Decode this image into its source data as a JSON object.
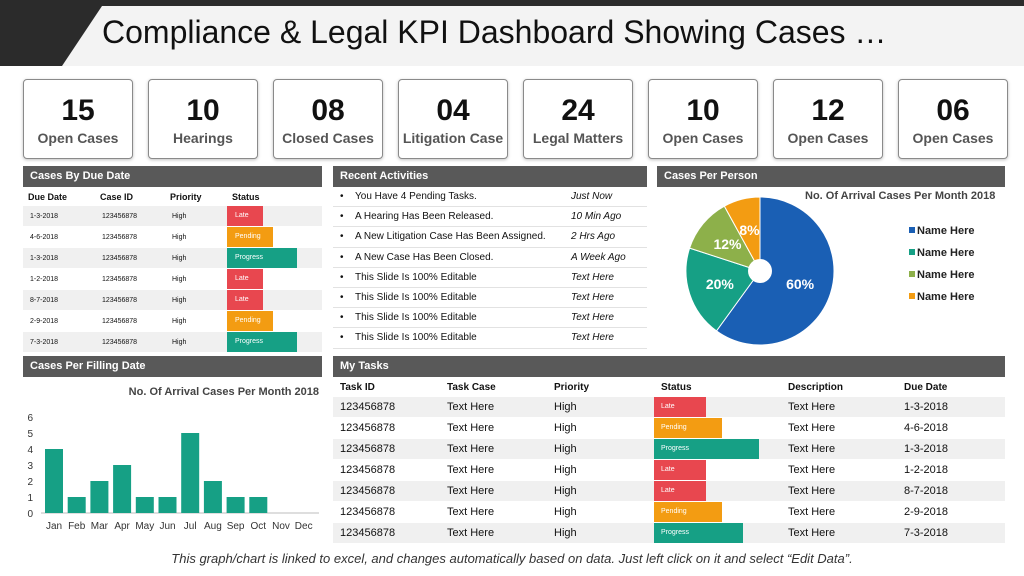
{
  "title": "Compliance & Legal KPI Dashboard Showing Cases …",
  "kpis": [
    {
      "value": "15",
      "label": "Open Cases"
    },
    {
      "value": "10",
      "label": "Hearings"
    },
    {
      "value": "08",
      "label": "Closed Cases"
    },
    {
      "value": "04",
      "label": "Litigation Case"
    },
    {
      "value": "24",
      "label": "Legal Matters"
    },
    {
      "value": "10",
      "label": "Open Cases"
    },
    {
      "value": "12",
      "label": "Open Cases"
    },
    {
      "value": "06",
      "label": "Open Cases"
    }
  ],
  "colors": {
    "late": "#e8474f",
    "pending": "#f39c12",
    "progress": "#16a085",
    "header": "#595959",
    "bar": "#16a085"
  },
  "due_panel": {
    "title": "Cases By Due Date",
    "headers": [
      "Due Date",
      "Case ID",
      "Priority",
      "Status"
    ],
    "rows": [
      {
        "date": "1-3-2018",
        "id": "123456878",
        "priority": "High",
        "status": "Late",
        "kind": "late"
      },
      {
        "date": "4-6-2018",
        "id": "123456878",
        "priority": "High",
        "status": "Pending",
        "kind": "pending"
      },
      {
        "date": "1-3-2018",
        "id": "123456878",
        "priority": "High",
        "status": "Progress",
        "kind": "progress"
      },
      {
        "date": "1-2-2018",
        "id": "123456878",
        "priority": "High",
        "status": "Late",
        "kind": "late"
      },
      {
        "date": "8-7-2018",
        "id": "123456878",
        "priority": "High",
        "status": "Late",
        "kind": "late"
      },
      {
        "date": "2-9-2018",
        "id": "123456878",
        "priority": "High",
        "status": "Pending",
        "kind": "pending"
      },
      {
        "date": "7-3-2018",
        "id": "123456878",
        "priority": "High",
        "status": "Progress",
        "kind": "progress"
      }
    ]
  },
  "activities": {
    "title": "Recent Activities",
    "items": [
      {
        "text": "You Have 4 Pending Tasks.",
        "time": "Just Now"
      },
      {
        "text": "A Hearing Has Been Released.",
        "time": "10 Min Ago"
      },
      {
        "text": "A New Litigation Case Has Been Assigned.",
        "time": "2 Hrs Ago"
      },
      {
        "text": "A New Case Has Been Closed.",
        "time": "A Week Ago"
      },
      {
        "text": "This Slide Is 100% Editable",
        "time": "Text Here"
      },
      {
        "text": "This Slide Is 100% Editable",
        "time": "Text Here"
      },
      {
        "text": "This Slide Is 100% Editable",
        "time": "Text Here"
      },
      {
        "text": "This Slide Is 100% Editable",
        "time": "Text Here"
      }
    ]
  },
  "pie_panel": {
    "title": "Cases Per Person",
    "chart_title": "No. Of Arrival Cases Per Month 2018",
    "legend": [
      "Name Here",
      "Name Here",
      "Name Here",
      "Name Here"
    ]
  },
  "bar_panel": {
    "title": "Cases Per Filling Date"
  },
  "tasks": {
    "title": "My Tasks",
    "headers": [
      "Task ID",
      "Task Case",
      "Priority",
      "Status",
      "Description",
      "Due Date"
    ],
    "rows": [
      {
        "id": "123456878",
        "case": "Text Here",
        "priority": "High",
        "status": "Late",
        "kind": "late",
        "fill": 0.42,
        "desc": "Text Here",
        "due": "1-3-2018"
      },
      {
        "id": "123456878",
        "case": "Text Here",
        "priority": "High",
        "status": "Pending",
        "kind": "pending",
        "fill": 0.55,
        "desc": "Text Here",
        "due": "4-6-2018"
      },
      {
        "id": "123456878",
        "case": "Text Here",
        "priority": "High",
        "status": "Progress",
        "kind": "progress",
        "fill": 0.85,
        "desc": "Text Here",
        "due": "1-3-2018"
      },
      {
        "id": "123456878",
        "case": "Text Here",
        "priority": "High",
        "status": "Late",
        "kind": "late",
        "fill": 0.42,
        "desc": "Text Here",
        "due": "1-2-2018"
      },
      {
        "id": "123456878",
        "case": "Text Here",
        "priority": "High",
        "status": "Late",
        "kind": "late",
        "fill": 0.42,
        "desc": "Text Here",
        "due": "8-7-2018"
      },
      {
        "id": "123456878",
        "case": "Text Here",
        "priority": "High",
        "status": "Pending",
        "kind": "pending",
        "fill": 0.55,
        "desc": "Text Here",
        "due": "2-9-2018"
      },
      {
        "id": "123456878",
        "case": "Text Here",
        "priority": "High",
        "status": "Progress",
        "kind": "progress",
        "fill": 0.72,
        "desc": "Text Here",
        "due": "7-3-2018"
      }
    ]
  },
  "footer": "This graph/chart is linked to excel, and changes automatically based on data. Just left click on it and select “Edit Data”.",
  "chart_data": [
    {
      "type": "pie",
      "title": "No. Of Arrival Cases Per Month 2018",
      "categories": [
        "Name Here",
        "Name Here",
        "Name Here",
        "Name Here"
      ],
      "values": [
        60,
        20,
        12,
        8
      ],
      "labels": [
        "60%",
        "20%",
        "12%",
        "8%"
      ],
      "colors": [
        "#1a5fb4",
        "#16a085",
        "#8db04a",
        "#f39c12"
      ],
      "legend": "right"
    },
    {
      "type": "bar",
      "title": "No. Of Arrival Cases Per Month 2018",
      "categories": [
        "Jan",
        "Feb",
        "Mar",
        "Apr",
        "May",
        "Jun",
        "Jul",
        "Aug",
        "Sep",
        "Oct",
        "Nov",
        "Dec"
      ],
      "values": [
        4,
        1,
        2,
        3,
        1,
        1,
        5,
        2,
        1,
        1,
        0,
        0
      ],
      "ylim": [
        0,
        6
      ],
      "yticks": [
        "0",
        "1",
        "2",
        "3",
        "4",
        "5",
        "6"
      ],
      "grid": false,
      "color": "#16a085"
    }
  ]
}
